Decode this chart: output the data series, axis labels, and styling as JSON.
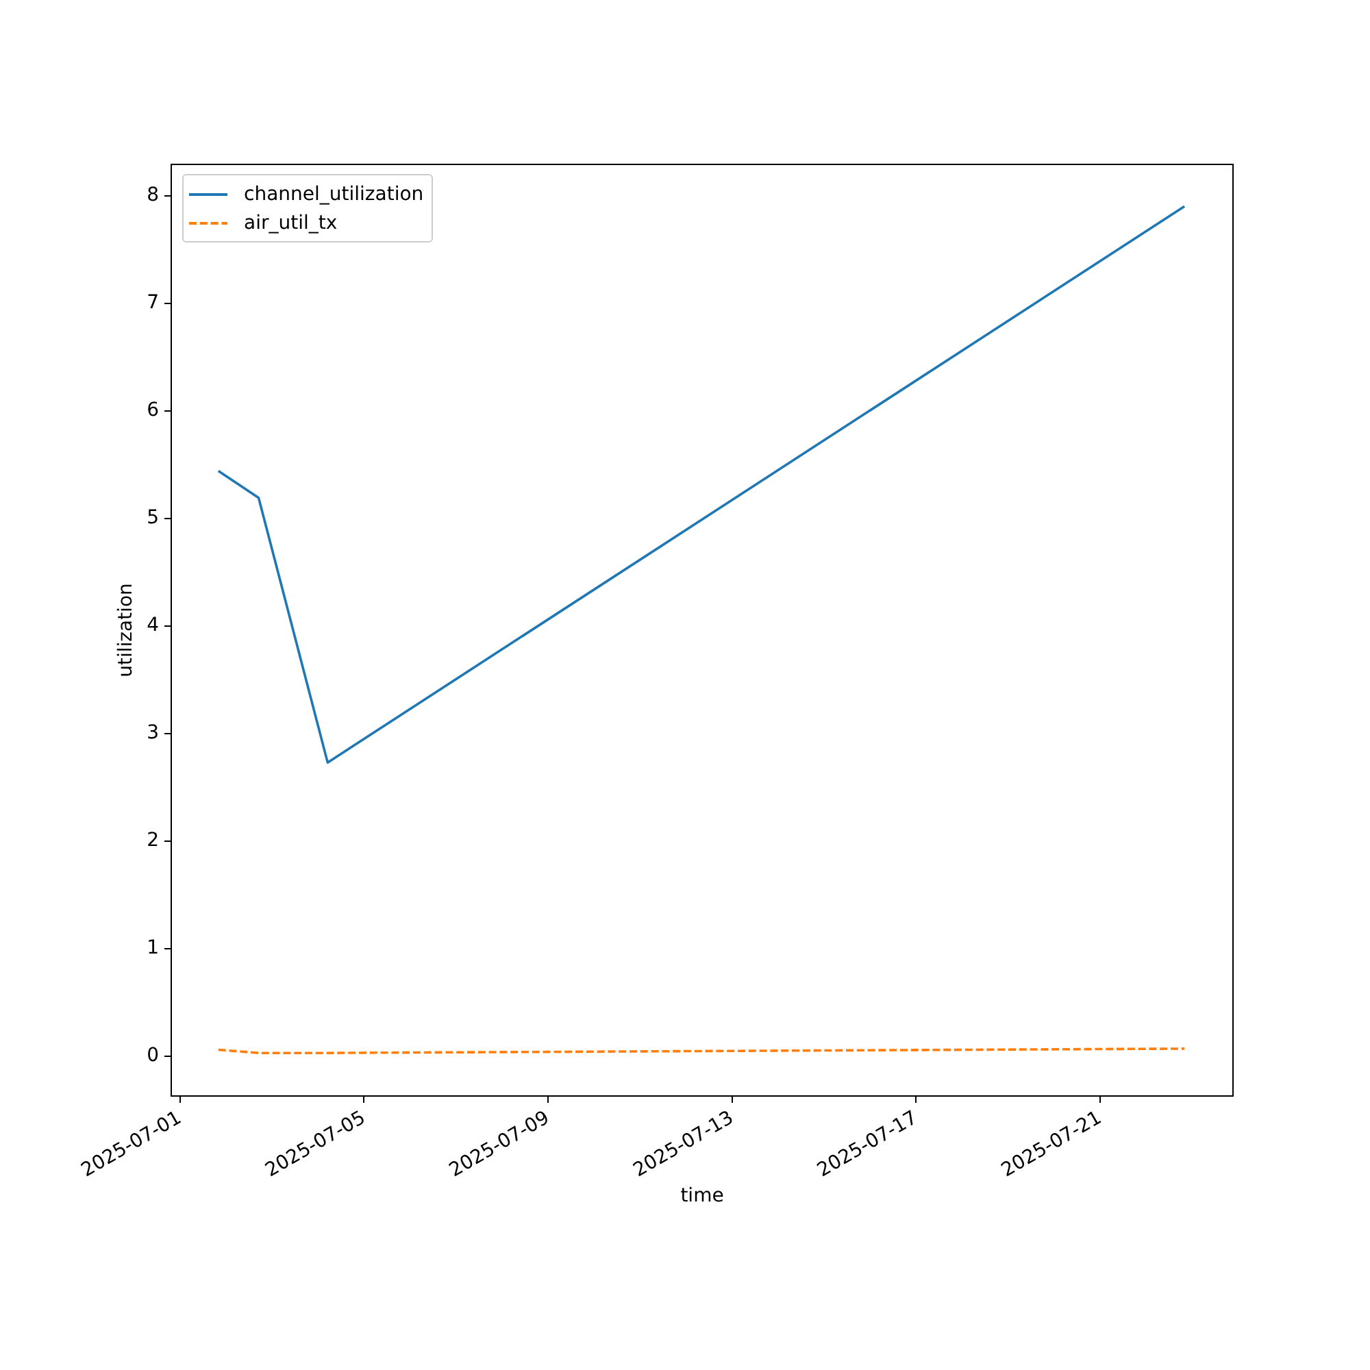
{
  "chart_data": {
    "type": "line",
    "xlabel": "time",
    "ylabel": "utilization",
    "x": [
      "2025-07-01T20:00",
      "2025-07-02T17:00",
      "2025-07-04T05:00",
      "2025-07-22T20:00"
    ],
    "series": [
      {
        "name": "channel_utilization",
        "color": "#1f77b4",
        "values": [
          5.44,
          5.19,
          2.73,
          7.9
        ],
        "line_style": "solid"
      },
      {
        "name": "air_util_tx",
        "color": "#ff7f0e",
        "values": [
          0.06,
          0.03,
          0.03,
          0.07
        ],
        "line_style": "dashed"
      }
    ],
    "xlim": [
      "2025-06-30T19:25",
      "2025-07-23T21:20"
    ],
    "xticks": [
      "2025-07-01",
      "2025-07-05",
      "2025-07-09",
      "2025-07-13",
      "2025-07-17",
      "2025-07-21"
    ],
    "ylim": [
      -0.37,
      8.29
    ],
    "yticks": [
      0,
      1,
      2,
      3,
      4,
      5,
      6,
      7,
      8
    ],
    "legend": "top left"
  }
}
